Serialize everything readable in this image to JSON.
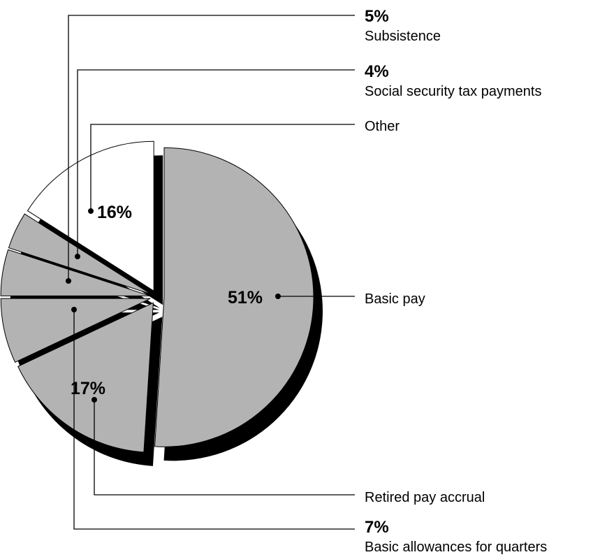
{
  "chart_data": {
    "type": "pie",
    "title": "",
    "slices": [
      {
        "label": "Basic pay",
        "value": 51,
        "display": "51%",
        "color": "#b3b3b3"
      },
      {
        "label": "Retired pay accrual",
        "value": 17,
        "display": "17%",
        "color": "#b3b3b3"
      },
      {
        "label": "Basic allowances for quarters",
        "value": 7,
        "display": "7%",
        "color": "#b3b3b3"
      },
      {
        "label": "Subsistence",
        "value": 5,
        "display": "5%",
        "color": "#b3b3b3"
      },
      {
        "label": "Social security tax payments",
        "value": 4,
        "display": "4%",
        "color": "#b3b3b3"
      },
      {
        "label": "Other",
        "value": 16,
        "display": "16%",
        "color": "#ffffff"
      }
    ],
    "shadow_color": "#000000"
  }
}
